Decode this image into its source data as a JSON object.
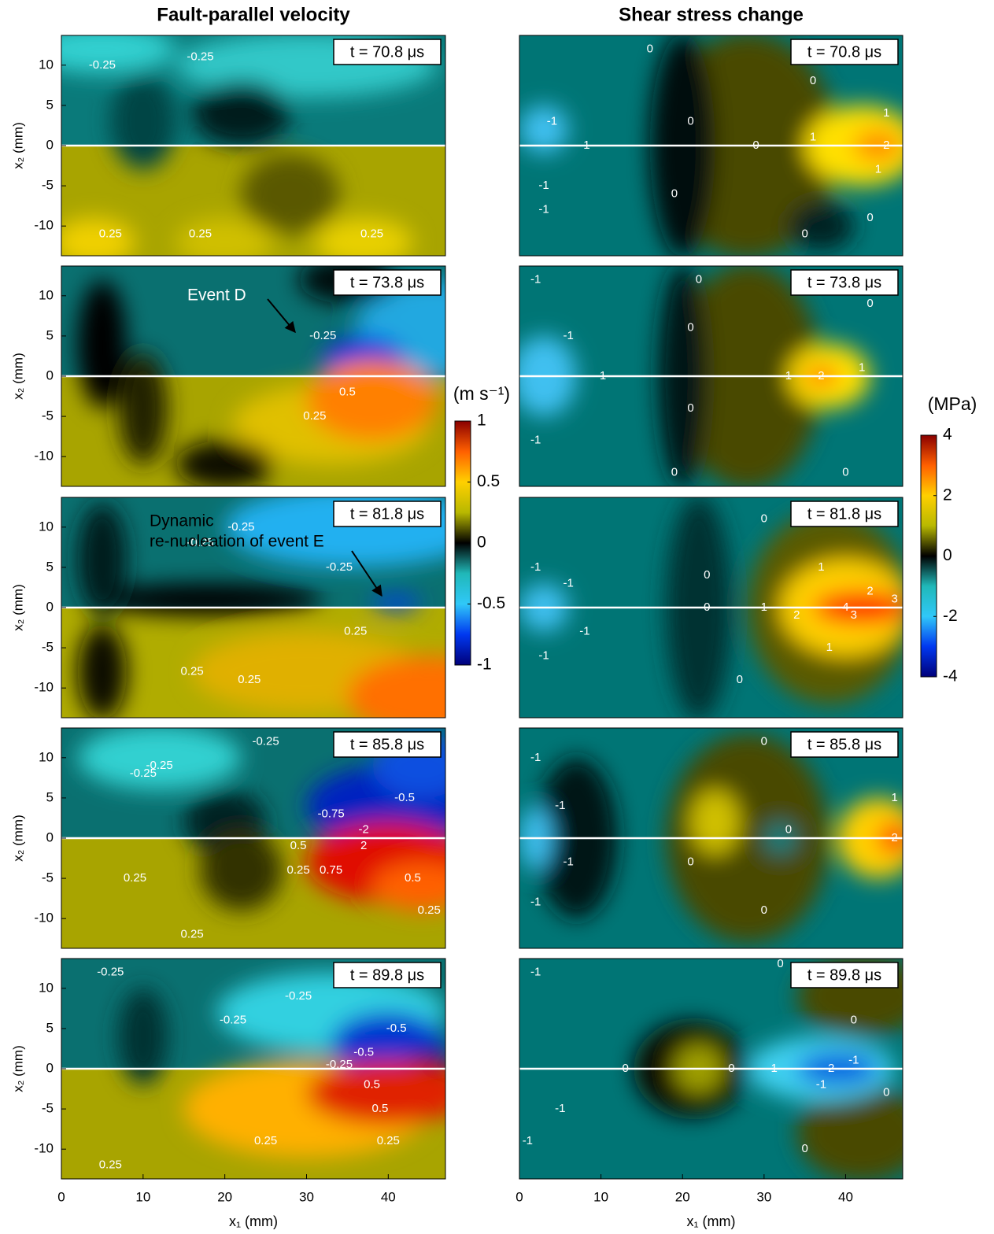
{
  "chart_data": [
    {
      "type": "contour",
      "title": "Fault-parallel velocity",
      "annotation": "t = 70.8 μs",
      "xlim": [
        0,
        47
      ],
      "ylim": [
        -13.7,
        13.7
      ],
      "yticks": [
        -10,
        -5,
        0,
        5,
        10
      ],
      "ylabel": "x₂ (mm)",
      "contour_labels": [
        -0.25,
        -0.25,
        0.25,
        0.25,
        0.25
      ],
      "colorbar": {
        "label": "(m s⁻¹)",
        "lim": [
          -1,
          1
        ],
        "ticks": [
          -1,
          -0.5,
          0,
          0.5,
          1
        ],
        "colors": [
          "#00007a",
          "#0038f0",
          "#30c8f8",
          "#20b8b8",
          "#000000",
          "#b8b800",
          "#ffd000",
          "#ff6000",
          "#8a0000"
        ]
      }
    },
    {
      "type": "contour",
      "annotation": "t = 73.8 μs",
      "xlim": [
        0,
        47
      ],
      "ylim": [
        -13.7,
        13.7
      ],
      "yticks": [
        -10,
        -5,
        0,
        5,
        10
      ],
      "ylabel": "x₂ (mm)",
      "contour_labels": [
        -0.25,
        0.5,
        0.25
      ],
      "callout": [
        "Event D"
      ]
    },
    {
      "type": "contour",
      "annotation": "t = 81.8 μs",
      "xlim": [
        0,
        47
      ],
      "ylim": [
        -13.7,
        13.7
      ],
      "yticks": [
        -10,
        -5,
        0,
        5,
        10
      ],
      "ylabel": "x₂ (mm)",
      "contour_labels": [
        -0.25,
        -0.25,
        -0.25,
        0.25,
        0.25,
        0.25
      ],
      "callout": [
        "Dynamic",
        "re-nucleation of event E"
      ]
    },
    {
      "type": "contour",
      "annotation": "t = 85.8 μs",
      "xlim": [
        0,
        47
      ],
      "ylim": [
        -13.7,
        13.7
      ],
      "yticks": [
        -10,
        -5,
        0,
        5,
        10
      ],
      "ylabel": "x₂ (mm)",
      "contour_labels": [
        -0.25,
        -0.25,
        -0.25,
        -0.5,
        -0.75,
        -2,
        2,
        0.5,
        0.25,
        0.75,
        0.5,
        0.25,
        0.25,
        0.25
      ]
    },
    {
      "type": "contour",
      "annotation": "t = 89.8 μs",
      "xlim": [
        0,
        47
      ],
      "ylim": [
        -13.7,
        13.7
      ],
      "yticks": [
        -10,
        -5,
        0,
        5,
        10
      ],
      "ylabel": "x₂ (mm)",
      "xticks": [
        0,
        10,
        20,
        30,
        40
      ],
      "xlabel": "x₁ (mm)",
      "contour_labels": [
        -0.25,
        -0.25,
        -0.25,
        -0.5,
        -0.5,
        -0.25,
        0.5,
        0.5,
        0.25,
        0.25,
        0.25
      ]
    },
    {
      "type": "contour",
      "title": "Shear stress change",
      "annotation": "t = 70.8 μs",
      "xlim": [
        0,
        47
      ],
      "ylim": [
        -13.7,
        13.7
      ],
      "contour_labels": [
        0,
        -1,
        -1,
        -1,
        -1,
        0,
        0,
        0,
        0,
        0,
        0,
        1,
        1,
        1,
        2
      ],
      "colorbar": {
        "label": "(MPa)",
        "lim": [
          -4,
          4
        ],
        "ticks": [
          -4,
          -2,
          0,
          2,
          4
        ],
        "colors": [
          "#00007a",
          "#0038f0",
          "#30c8f8",
          "#20b8b8",
          "#000000",
          "#b8b800",
          "#ffd000",
          "#ff6000",
          "#8a0000"
        ]
      }
    },
    {
      "type": "contour",
      "annotation": "t = 73.8 μs",
      "xlim": [
        0,
        47
      ],
      "ylim": [
        -13.7,
        13.7
      ],
      "contour_labels": [
        0,
        0,
        -1,
        -1,
        -1,
        0,
        0,
        0,
        0,
        1,
        2,
        1,
        -1
      ]
    },
    {
      "type": "contour",
      "annotation": "t = 81.8 μs",
      "xlim": [
        0,
        47
      ],
      "ylim": [
        -13.7,
        13.7
      ],
      "contour_labels": [
        0,
        0,
        0,
        0,
        1,
        2,
        3,
        4,
        3,
        2,
        1,
        1,
        -1,
        -1,
        -1,
        -1
      ]
    },
    {
      "type": "contour",
      "annotation": "t = 85.8 μs",
      "xlim": [
        0,
        47
      ],
      "ylim": [
        -13.7,
        13.7
      ],
      "contour_labels": [
        0,
        0,
        0,
        0,
        -1,
        -1,
        -1,
        -1,
        1,
        2
      ]
    },
    {
      "type": "contour",
      "annotation": "t = 89.8 μs",
      "xlim": [
        0,
        47
      ],
      "ylim": [
        -13.7,
        13.7
      ],
      "xticks": [
        0,
        10,
        20,
        30,
        40
      ],
      "xlabel": "x₁ (mm)",
      "contour_labels": [
        0,
        0,
        0,
        0,
        0,
        0,
        -1,
        -1,
        -2,
        -1,
        -1,
        -1,
        -1
      ]
    }
  ]
}
